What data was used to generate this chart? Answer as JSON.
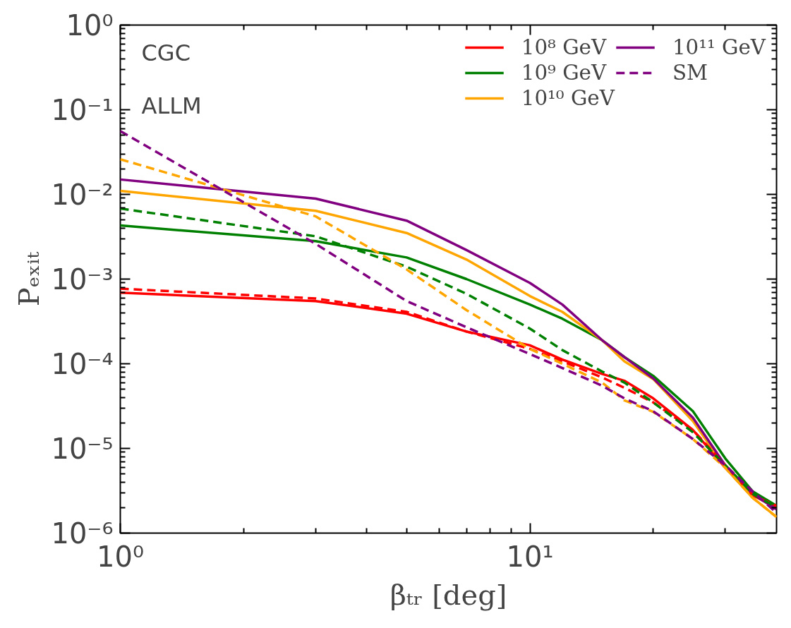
{
  "chart_data": {
    "type": "line",
    "xlabel": "βₜᵣ [deg]",
    "ylabel": "Pₑₓᵢₜ",
    "log": "xy",
    "grid": false,
    "legend": "top right",
    "xlim": [
      1,
      40
    ],
    "xticks": [
      {
        "value": 1,
        "label": "10⁰"
      },
      {
        "value": 10,
        "label": "10¹"
      }
    ],
    "ylim": [
      1e-06,
      1
    ],
    "yticks": [
      {
        "value": 1e-06,
        "label": "10⁻⁶"
      },
      {
        "value": 1e-05,
        "label": "10⁻⁵"
      },
      {
        "value": 0.0001,
        "label": "10⁻⁴"
      },
      {
        "value": 0.001,
        "label": "10⁻³"
      },
      {
        "value": 0.01,
        "label": "10⁻²"
      },
      {
        "value": 0.1,
        "label": "10⁻¹"
      },
      {
        "value": 1,
        "label": "10⁰"
      }
    ],
    "x": [
      1,
      3,
      5,
      7,
      10,
      12,
      15,
      17,
      20,
      25,
      30,
      35,
      40
    ],
    "annotations": [
      "CGC",
      "ALLM"
    ],
    "series": [
      {
        "name": "10⁸ GeV",
        "color": "#ff0000",
        "line_style": "solid",
        "values": [
          0.00069,
          0.00055,
          0.00039,
          0.00024,
          0.000165,
          0.000112,
          7.6e-05,
          6.3e-05,
          3.9e-05,
          1.65e-05,
          5.9e-06,
          2.8e-06,
          2e-06
        ]
      },
      {
        "name": "10⁹ GeV",
        "color": "#008000",
        "line_style": "solid",
        "values": [
          0.0043,
          0.0028,
          0.0018,
          0.001,
          0.0005,
          0.00034,
          0.00019,
          0.00012,
          7.2e-05,
          2.75e-05,
          7.6e-06,
          3.1e-06,
          2.1e-06
        ]
      },
      {
        "name": "10¹⁰ GeV",
        "color": "#ffa500",
        "line_style": "solid",
        "values": [
          0.011,
          0.0064,
          0.0035,
          0.0017,
          0.00063,
          0.00041,
          0.00019,
          0.000107,
          6.6e-05,
          2.1e-05,
          5.9e-06,
          2.6e-06,
          1.55e-06
        ]
      },
      {
        "name": "10¹¹ GeV",
        "color": "#800080",
        "line_style": "solid",
        "values": [
          0.015,
          0.0089,
          0.0049,
          0.0022,
          0.0009,
          0.0005,
          0.00019,
          0.00012,
          6.7e-05,
          2.3e-05,
          6.3e-06,
          2.9e-06,
          1.9e-06
        ]
      },
      {
        "color": "#ff0000",
        "line_style": "dashed",
        "values": [
          0.00077,
          0.00059,
          0.00041,
          0.00024,
          0.00015,
          0.000107,
          6.9e-05,
          5.2e-05,
          3.5e-05,
          1.65e-05,
          6.3e-06,
          2.8e-06,
          2.1e-06
        ]
      },
      {
        "color": "#008000",
        "line_style": "dashed",
        "values": [
          0.0068,
          0.0032,
          0.0014,
          0.00067,
          0.00026,
          0.000145,
          8.1e-05,
          6e-05,
          3.5e-05,
          1.55e-05,
          6.3e-06,
          2.9e-06,
          2e-06
        ]
      },
      {
        "color": "#ffa500",
        "line_style": "dashed",
        "values": [
          0.026,
          0.0055,
          0.0013,
          0.00043,
          0.00015,
          0.0001,
          6e-05,
          3.7e-05,
          2.7e-05,
          1.29e-05,
          5.9e-06,
          2.6e-06,
          1.55e-06
        ]
      },
      {
        "name": "SM",
        "color": "#800080",
        "line_style": "dashed",
        "values": [
          0.056,
          0.0026,
          0.00055,
          0.00027,
          0.00013,
          8.9e-05,
          5.5e-05,
          3.9e-05,
          2.75e-05,
          1.29e-05,
          6.3e-06,
          3.1e-06,
          1.74e-06
        ]
      }
    ]
  }
}
